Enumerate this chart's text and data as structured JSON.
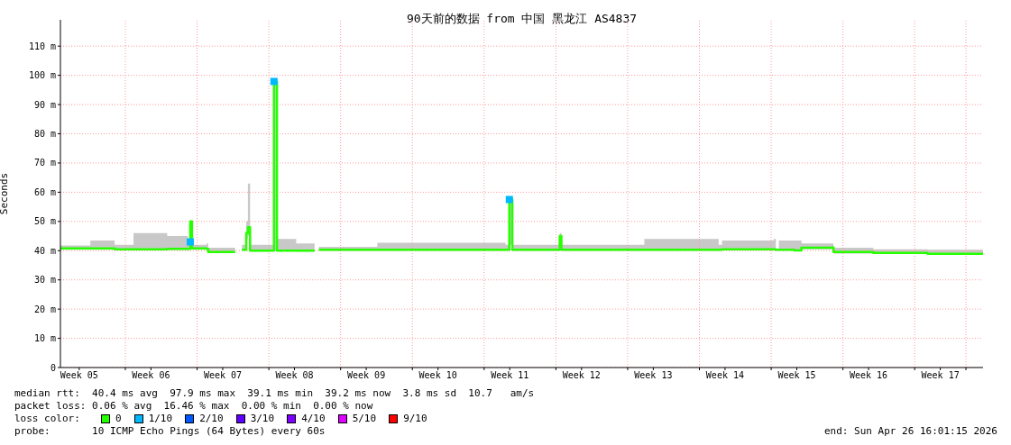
{
  "chart_data": {
    "type": "step",
    "title": "90天前的数据 from 中国 黑龙江 AS4837",
    "ylabel": "Seconds",
    "legend_title": "loss color:",
    "legend": "bottom",
    "grid": true,
    "xlim": [
      "2026-01-26T16:01",
      "2026-04-26T16:01"
    ],
    "xticks": [
      {
        "value": "2026-01-28T12:00",
        "label": "Week 05"
      },
      {
        "value": "2026-02-02T00:00",
        "label": null
      },
      {
        "value": "2026-02-04T12:00",
        "label": "Week 06"
      },
      {
        "value": "2026-02-09T00:00",
        "label": null
      },
      {
        "value": "2026-02-11T12:00",
        "label": "Week 07"
      },
      {
        "value": "2026-02-16T00:00",
        "label": null
      },
      {
        "value": "2026-02-18T12:00",
        "label": "Week 08"
      },
      {
        "value": "2026-02-23T00:00",
        "label": null
      },
      {
        "value": "2026-02-25T12:00",
        "label": "Week 09"
      },
      {
        "value": "2026-03-02T00:00",
        "label": null
      },
      {
        "value": "2026-03-04T12:00",
        "label": "Week 10"
      },
      {
        "value": "2026-03-09T00:00",
        "label": null
      },
      {
        "value": "2026-03-11T12:00",
        "label": "Week 11"
      },
      {
        "value": "2026-03-16T00:00",
        "label": null
      },
      {
        "value": "2026-03-18T12:00",
        "label": "Week 12"
      },
      {
        "value": "2026-03-23T00:00",
        "label": null
      },
      {
        "value": "2026-03-25T12:00",
        "label": "Week 13"
      },
      {
        "value": "2026-03-30T00:00",
        "label": null
      },
      {
        "value": "2026-04-01T12:00",
        "label": "Week 14"
      },
      {
        "value": "2026-04-06T00:00",
        "label": null
      },
      {
        "value": "2026-04-08T12:00",
        "label": "Week 15"
      },
      {
        "value": "2026-04-13T00:00",
        "label": null
      },
      {
        "value": "2026-04-15T12:00",
        "label": "Week 16"
      },
      {
        "value": "2026-04-20T00:00",
        "label": null
      },
      {
        "value": "2026-04-22T12:00",
        "label": "Week 17"
      },
      {
        "value": "2026-04-25T00:00",
        "label": null
      }
    ],
    "ylim": [
      0,
      119
    ],
    "yticks": [
      0,
      {
        "value": 10,
        "label": "10 m"
      },
      {
        "value": 20,
        "label": "20 m"
      },
      {
        "value": 30,
        "label": "30 m"
      },
      {
        "value": 40,
        "label": "40 m"
      },
      {
        "value": 50,
        "label": "50 m"
      },
      {
        "value": 60,
        "label": "60 m"
      },
      {
        "value": 70,
        "label": "70 m"
      },
      {
        "value": 80,
        "label": "80 m"
      },
      {
        "value": 90,
        "label": "90 m"
      },
      {
        "value": 100,
        "label": "100 m"
      },
      {
        "value": 110,
        "label": "110 m"
      }
    ],
    "series": [
      {
        "name": "0",
        "color": "#26ff00",
        "x": [
          "2026-01-26T16:01",
          "2026-01-29T14:00",
          "2026-01-31T23:00",
          "2026-02-02T19:00",
          "2026-02-06T02:00",
          "2026-02-08T02:00",
          "2026-02-08T08:00",
          "2026-02-08T12:00",
          "2026-02-09T22:00",
          "2026-02-10T02:00",
          "2026-02-12T17:00",
          "2026-02-13T00:00",
          "2026-02-13T09:00",
          "2026-02-13T19:00",
          "2026-02-13T23:00",
          "2026-02-14T04:00",
          "2026-02-16T02:00",
          "2026-02-16T12:00",
          "2026-02-16T19:00",
          "2026-02-18T16:00",
          "2026-02-20T11:00",
          "2026-02-20T15:00",
          "2026-02-20T21:00",
          "2026-02-26T14:00",
          "2026-03-11T02:00",
          "2026-03-11T11:00",
          "2026-03-11T18:00",
          "2026-03-16T06:00",
          "2026-03-16T09:00",
          "2026-03-16T13:00",
          "2026-03-24T15:00",
          "2026-03-31T21:00",
          "2026-04-01T05:00",
          "2026-04-06T06:00",
          "2026-04-06T11:00",
          "2026-04-06T18:00",
          "2026-04-08T06:00",
          "2026-04-08T23:00",
          "2026-04-11T21:00",
          "2026-04-12T02:00",
          "2026-04-15T23:00",
          "2026-04-21T06:00",
          "2026-04-26T16:01"
        ],
        "values": [
          40.8,
          40.8,
          40.5,
          40.5,
          40.6,
          40.6,
          50,
          40.8,
          40.6,
          39.5,
          39.5,
          null,
          40.3,
          46,
          48,
          40,
          40,
          97.9,
          40,
          40,
          40,
          null,
          40.3,
          40.3,
          40.3,
          57.5,
          40.3,
          40.3,
          45,
          40.3,
          40.3,
          40.3,
          40.5,
          40.5,
          40.3,
          40.3,
          40.1,
          41,
          41.1,
          39.5,
          39.2,
          38.9,
          39.2
        ],
        "lower": [
          40.3,
          40.3,
          40.1,
          40.2,
          40.2,
          40.2,
          40.5,
          40.3,
          40.2,
          39.2,
          39.2,
          null,
          40,
          44,
          45,
          39.7,
          39.8,
          40,
          39.8,
          39.7,
          39.8,
          null,
          40,
          40,
          40,
          42,
          40,
          40,
          41,
          40,
          40,
          40,
          40.2,
          40,
          40,
          40.1,
          39.9,
          40.5,
          40.5,
          39,
          38.9,
          38.7,
          38.9
        ],
        "upper": [
          41.8,
          43.5,
          42,
          46,
          45,
          42,
          50,
          42,
          42.5,
          41,
          42,
          null,
          42,
          50,
          63,
          42,
          42,
          98,
          44,
          42.5,
          42,
          null,
          41.3,
          42.7,
          42,
          58,
          42,
          42.5,
          46,
          42,
          44,
          42,
          43.5,
          44,
          40.5,
          43.5,
          43.5,
          42.5,
          42.5,
          41,
          40.5,
          40.3,
          39.8
        ]
      },
      {
        "name": "1/10",
        "type": "scatter",
        "marker": "square",
        "color": "#00b8ff",
        "x": [
          "2026-02-08T08:00",
          "2026-02-16T12:00",
          "2026-03-11T11:00"
        ],
        "values": [
          43,
          97.9,
          57.5
        ]
      },
      {
        "name": "2/10",
        "type": "scatter",
        "color": "#0059ff"
      },
      {
        "name": "3/10",
        "type": "scatter",
        "color": "#5e00ff"
      },
      {
        "name": "4/10",
        "type": "scatter",
        "color": "#7e00ff"
      },
      {
        "name": "5/10",
        "type": "scatter",
        "color": "#dd00ff"
      },
      {
        "name": "9/10",
        "type": "scatter",
        "color": "#ff0000"
      }
    ],
    "annotations": [
      "median rtt:  40.4 ms avg  97.9 ms max  39.1 ms min  39.2 ms now  3.8 ms sd  10.7   am/s",
      "packet loss: 0.06 % avg  16.46 % max  0.00 % min  0.00 % now",
      "probe:       10 ICMP Echo Pings (64 Bytes) every 60s",
      "end: Sun Apr 26 16:01:15 2026"
    ]
  }
}
